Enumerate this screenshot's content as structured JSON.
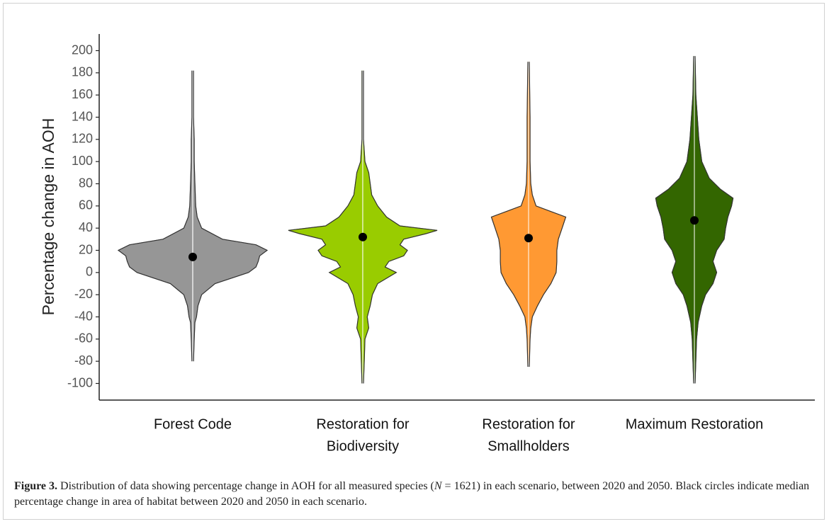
{
  "chart_data": {
    "type": "violin",
    "y_label": "Percentage change in AOH",
    "ylim": [
      -115,
      215
    ],
    "yticks": [
      -100,
      -80,
      -60,
      -40,
      -20,
      0,
      20,
      40,
      60,
      80,
      100,
      120,
      140,
      160,
      180,
      200
    ],
    "categories": [
      [
        "Forest Code"
      ],
      [
        "Restoration for",
        "Biodiversity"
      ],
      [
        "Restoration for",
        "Smallholders"
      ],
      [
        "Maximum Restoration"
      ]
    ],
    "series": [
      {
        "color": "#969696",
        "median": 14,
        "density_y": [
          -80,
          -60,
          -45,
          -40,
          -30,
          -20,
          -10,
          0,
          5,
          10,
          15,
          20,
          25,
          30,
          40,
          50,
          60,
          80,
          100,
          120,
          140,
          182
        ],
        "density": [
          0.01,
          0.02,
          0.03,
          0.05,
          0.07,
          0.12,
          0.3,
          0.75,
          0.85,
          0.88,
          0.9,
          1.0,
          0.85,
          0.4,
          0.12,
          0.06,
          0.04,
          0.03,
          0.02,
          0.02,
          0.01,
          0.01
        ]
      },
      {
        "color": "#99cc00",
        "median": 32,
        "density_y": [
          -100,
          -80,
          -60,
          -50,
          -40,
          -30,
          -20,
          -10,
          0,
          5,
          10,
          15,
          20,
          25,
          30,
          35,
          38,
          42,
          50,
          60,
          70,
          80,
          90,
          100,
          120,
          182
        ],
        "density": [
          0.01,
          0.02,
          0.03,
          0.08,
          0.06,
          0.1,
          0.13,
          0.2,
          0.45,
          0.3,
          0.35,
          0.55,
          0.6,
          0.5,
          0.55,
          0.85,
          1.0,
          0.5,
          0.32,
          0.2,
          0.12,
          0.1,
          0.08,
          0.03,
          0.01,
          0.01
        ]
      },
      {
        "color": "#ff9933",
        "median": 31,
        "density_y": [
          -85,
          -60,
          -50,
          -40,
          -30,
          -20,
          -10,
          0,
          10,
          20,
          30,
          40,
          50,
          55,
          60,
          70,
          80,
          100,
          140,
          190
        ],
        "density": [
          0.01,
          0.02,
          0.03,
          0.05,
          0.12,
          0.2,
          0.3,
          0.37,
          0.38,
          0.38,
          0.4,
          0.45,
          0.5,
          0.3,
          0.1,
          0.05,
          0.03,
          0.02,
          0.02,
          0.01
        ]
      },
      {
        "color": "#336600",
        "median": 47,
        "density_y": [
          -100,
          -60,
          -45,
          -30,
          -20,
          -10,
          0,
          10,
          20,
          30,
          40,
          50,
          60,
          67,
          75,
          85,
          100,
          120,
          160,
          195
        ],
        "density": [
          0.01,
          0.03,
          0.05,
          0.1,
          0.15,
          0.25,
          0.3,
          0.25,
          0.3,
          0.4,
          0.42,
          0.45,
          0.5,
          0.52,
          0.35,
          0.2,
          0.1,
          0.06,
          0.02,
          0.01
        ]
      }
    ]
  },
  "caption": {
    "label": "Figure 3.",
    "text_before": "Distribution of data showing percentage change in AOH for all measured species (",
    "variable": "N",
    "text_after": " = 1621) in each scenario, between 2020 and 2050. Black circles indicate median percentage change in area of habitat between 2020 and 2050 in each scenario."
  }
}
